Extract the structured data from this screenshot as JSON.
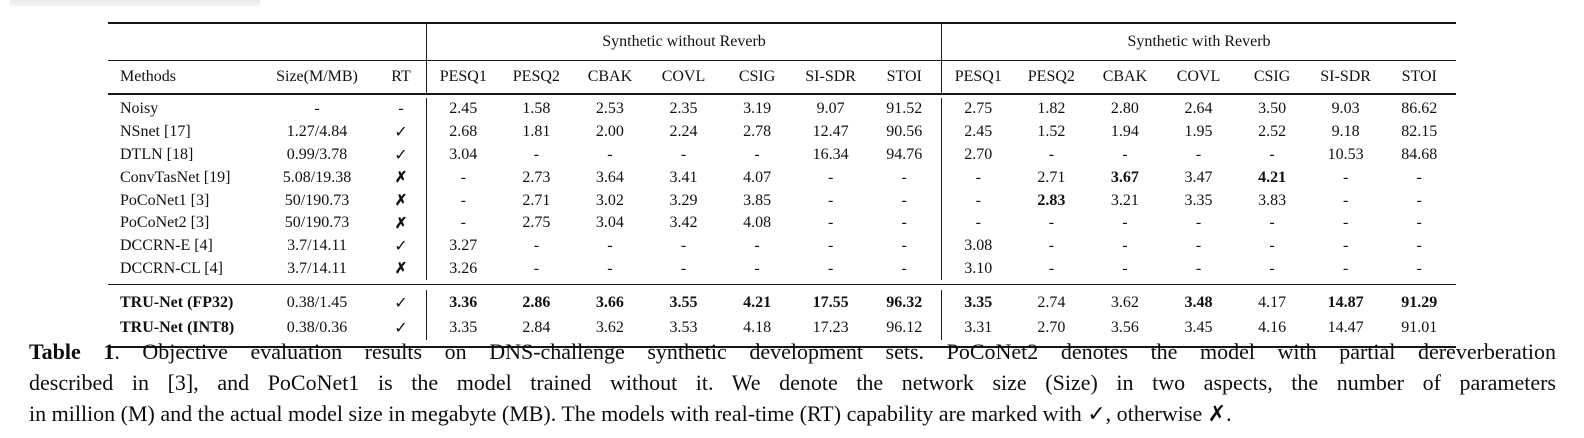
{
  "table": {
    "group_headers": [
      {
        "label": "Synthetic without Reverb"
      },
      {
        "label": "Synthetic with Reverb"
      }
    ],
    "columns": [
      "Methods",
      "Size(M/MB)",
      "RT",
      "PESQ1",
      "PESQ2",
      "CBAK",
      "COVL",
      "CSIG",
      "SI-SDR",
      "STOI",
      "PESQ1",
      "PESQ2",
      "CBAK",
      "COVL",
      "CSIG",
      "SI-SDR",
      "STOI"
    ],
    "rt_symbols": {
      "check": "✓",
      "cross": "✗",
      "dash": "-"
    },
    "rows": [
      {
        "method": "Noisy",
        "size": "-",
        "rt": "dash",
        "cells": [
          "2.45",
          "1.58",
          "2.53",
          "2.35",
          "3.19",
          "9.07",
          "91.52",
          "2.75",
          "1.82",
          "2.80",
          "2.64",
          "3.50",
          "9.03",
          "86.62"
        ],
        "bold_cells": [],
        "bold_method": false
      },
      {
        "method": "NSnet [17]",
        "size": "1.27/4.84",
        "rt": "check",
        "cells": [
          "2.68",
          "1.81",
          "2.00",
          "2.24",
          "2.78",
          "12.47",
          "90.56",
          "2.45",
          "1.52",
          "1.94",
          "1.95",
          "2.52",
          "9.18",
          "82.15"
        ],
        "bold_cells": [],
        "bold_method": false
      },
      {
        "method": "DTLN [18]",
        "size": "0.99/3.78",
        "rt": "check",
        "cells": [
          "3.04",
          "-",
          "-",
          "-",
          "-",
          "16.34",
          "94.76",
          "2.70",
          "-",
          "-",
          "-",
          "-",
          "10.53",
          "84.68"
        ],
        "bold_cells": [],
        "bold_method": false
      },
      {
        "method": "ConvTasNet [19]",
        "size": "5.08/19.38",
        "rt": "cross",
        "cells": [
          "-",
          "2.73",
          "3.64",
          "3.41",
          "4.07",
          "-",
          "-",
          "-",
          "2.71",
          "3.67",
          "3.47",
          "4.21",
          "-",
          "-"
        ],
        "bold_cells": [
          9,
          11
        ],
        "bold_method": false
      },
      {
        "method": "PoCoNet1 [3]",
        "size": "50/190.73",
        "rt": "cross",
        "cells": [
          "-",
          "2.71",
          "3.02",
          "3.29",
          "3.85",
          "-",
          "-",
          "-",
          "2.83",
          "3.21",
          "3.35",
          "3.83",
          "-",
          "-"
        ],
        "bold_cells": [
          8
        ],
        "bold_method": false
      },
      {
        "method": "PoCoNet2 [3]",
        "size": "50/190.73",
        "rt": "cross",
        "cells": [
          "-",
          "2.75",
          "3.04",
          "3.42",
          "4.08",
          "-",
          "-",
          "-",
          "-",
          "-",
          "-",
          "-",
          "-",
          "-"
        ],
        "bold_cells": [],
        "bold_method": false
      },
      {
        "method": "DCCRN-E [4]",
        "size": "3.7/14.11",
        "rt": "check",
        "cells": [
          "3.27",
          "-",
          "-",
          "-",
          "-",
          "-",
          "-",
          "3.08",
          "-",
          "-",
          "-",
          "-",
          "-",
          "-"
        ],
        "bold_cells": [],
        "bold_method": false
      },
      {
        "method": "DCCRN-CL [4]",
        "size": "3.7/14.11",
        "rt": "cross",
        "cells": [
          "3.26",
          "-",
          "-",
          "-",
          "-",
          "-",
          "-",
          "3.10",
          "-",
          "-",
          "-",
          "-",
          "-",
          "-"
        ],
        "bold_cells": [],
        "bold_method": false
      }
    ],
    "footer_rows": [
      {
        "method": "TRU-Net (FP32)",
        "size": "0.38/1.45",
        "rt": "check",
        "cells": [
          "3.36",
          "2.86",
          "3.66",
          "3.55",
          "4.21",
          "17.55",
          "96.32",
          "3.35",
          "2.74",
          "3.62",
          "3.48",
          "4.17",
          "14.87",
          "91.29"
        ],
        "bold_cells": [
          0,
          1,
          2,
          3,
          4,
          5,
          6,
          7,
          10,
          12,
          13
        ],
        "bold_method": true
      },
      {
        "method": "TRU-Net (INT8)",
        "size": "0.38/0.36",
        "rt": "check",
        "cells": [
          "3.35",
          "2.84",
          "3.62",
          "3.53",
          "4.18",
          "17.23",
          "96.12",
          "3.31",
          "2.70",
          "3.56",
          "3.45",
          "4.16",
          "14.47",
          "91.01"
        ],
        "bold_cells": [],
        "bold_method": true
      }
    ]
  },
  "caption": {
    "label": "Table 1",
    "lines": [
      ". Objective evaluation results on DNS-challenge synthetic development sets. PoCoNet2 denotes the model with partial dereverberation",
      "described in [3], and PoCoNet1 is the model trained without it. We denote the network size (Size) in two aspects, the number of parameters",
      "in million (M) and the actual model size in megabyte (MB). The models with real-time (RT) capability are marked with ✓, otherwise ✗."
    ]
  }
}
